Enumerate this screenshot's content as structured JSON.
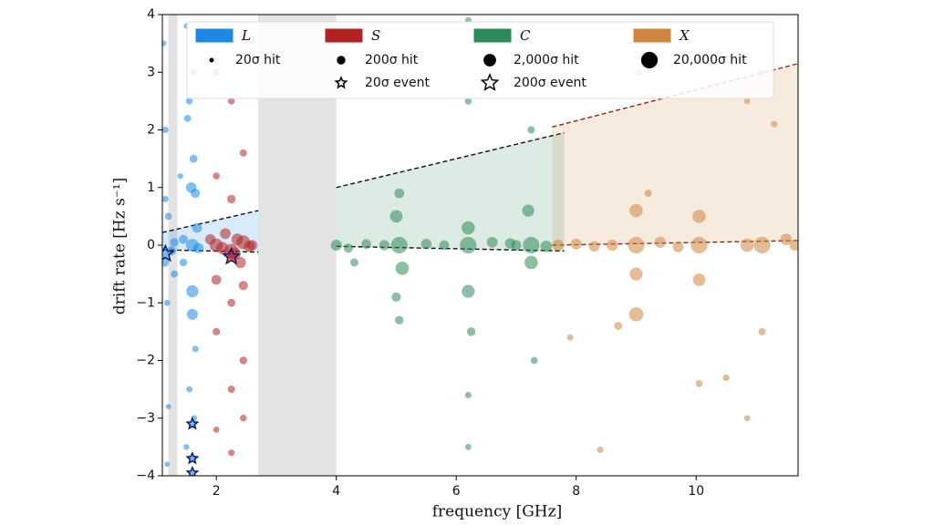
{
  "chart_data": {
    "type": "scatter",
    "x_label": "frequency [GHz]",
    "y_label": "drift rate [Hz s⁻¹]",
    "xlim": [
      1.1,
      11.7
    ],
    "ylim": [
      -4,
      4
    ],
    "xticks": [
      2,
      4,
      6,
      8,
      10
    ],
    "yticks": [
      {
        "value": -4,
        "label": "−4"
      },
      {
        "value": -3,
        "label": "−3"
      },
      {
        "value": -2,
        "label": "−2"
      },
      {
        "value": -1,
        "label": "−1"
      },
      0,
      1,
      2,
      3,
      4
    ],
    "masked_bands": [
      [
        1.2,
        1.35
      ],
      [
        2.7,
        4.0
      ]
    ],
    "envelopes": [
      {
        "color": "#1e88e5",
        "line_color": "#111111",
        "x": [
          1.1,
          2.7
        ],
        "upper": [
          0.22,
          0.6
        ],
        "lower": [
          -0.08,
          -0.12
        ]
      },
      {
        "color": "#2e8b57",
        "line_color": "#111111",
        "x": [
          4.0,
          7.8
        ],
        "upper": [
          1.0,
          1.95
        ],
        "lower": [
          -0.02,
          -0.1
        ]
      },
      {
        "color": "#d2884a",
        "line_color": "#8b2a10",
        "x": [
          7.6,
          11.7
        ],
        "upper": [
          2.05,
          3.15
        ],
        "lower": [
          0.0,
          0.08
        ]
      }
    ],
    "series": [
      {
        "name": "L",
        "color": "#1e88e5",
        "x": [
          1.12,
          1.15,
          1.18,
          1.2,
          1.25,
          1.3,
          1.4,
          1.45,
          1.5,
          1.55,
          1.6,
          1.62,
          1.65,
          1.68,
          1.7,
          1.55,
          1.5,
          1.2,
          1.15,
          1.6,
          1.62,
          1.45,
          1.3,
          1.18,
          1.65,
          1.58,
          1.6,
          1.52,
          1.63,
          1.14
        ],
        "y": [
          3.5,
          2.0,
          -1.0,
          0.5,
          -0.1,
          0.05,
          1.2,
          -0.3,
          3.8,
          -2.5,
          0.0,
          1.5,
          -1.8,
          0.3,
          -0.05,
          2.5,
          -3.5,
          -2.8,
          0.8,
          -1.2,
          3.0,
          0.1,
          -0.5,
          -3.8,
          0.9,
          1.0,
          -0.8,
          2.2,
          -3.0,
          -0.3
        ],
        "size": [
          40,
          60,
          50,
          80,
          300,
          200,
          40,
          120,
          30,
          50,
          2000,
          150,
          60,
          400,
          500,
          70,
          40,
          30,
          60,
          800,
          40,
          250,
          90,
          30,
          300,
          600,
          1500,
          80,
          50,
          200
        ],
        "events": {
          "x": [
            1.15,
            1.6,
            1.6,
            1.6
          ],
          "y": [
            -0.15,
            -3.1,
            -3.7,
            -3.95
          ],
          "size": [
            200,
            20,
            20,
            20
          ]
        }
      },
      {
        "name": "S",
        "color": "#b22222",
        "x": [
          2.0,
          2.0,
          2.0,
          2.0,
          2.0,
          2.25,
          2.25,
          2.25,
          2.25,
          2.25,
          2.45,
          2.45,
          2.45,
          2.45,
          2.45,
          2.1,
          2.35,
          2.55,
          1.9,
          2.3,
          2.0,
          2.45,
          2.25,
          2.6,
          2.15,
          2.4
        ],
        "y": [
          3.0,
          1.2,
          0.0,
          -1.5,
          -3.2,
          2.5,
          0.8,
          -0.1,
          -1.0,
          -3.6,
          3.6,
          1.6,
          0.05,
          -2.0,
          -3.0,
          -0.05,
          0.1,
          -0.02,
          0.1,
          -0.15,
          -0.6,
          -0.7,
          -2.5,
          0.0,
          0.2,
          -0.3
        ],
        "size": [
          60,
          80,
          3000,
          100,
          50,
          70,
          200,
          5000,
          150,
          60,
          50,
          90,
          4000,
          120,
          70,
          1500,
          1200,
          800,
          600,
          2000,
          400,
          300,
          100,
          500,
          700,
          900
        ],
        "events": {
          "x": [
            2.25
          ],
          "y": [
            -0.2
          ],
          "size": [
            200
          ]
        }
      },
      {
        "name": "C",
        "color": "#2e8b57",
        "x": [
          4.0,
          4.2,
          4.5,
          4.8,
          5.0,
          5.05,
          5.1,
          5.05,
          5.0,
          5.5,
          5.8,
          6.2,
          6.2,
          6.2,
          6.2,
          6.2,
          6.2,
          6.25,
          6.6,
          7.0,
          7.2,
          7.25,
          7.25,
          7.3,
          7.25,
          7.5,
          6.2,
          5.05,
          4.3,
          6.9
        ],
        "y": [
          0.0,
          -0.05,
          0.02,
          0.0,
          0.5,
          0.0,
          -0.4,
          0.9,
          -0.9,
          0.02,
          0.0,
          3.9,
          2.5,
          0.3,
          0.0,
          -0.8,
          -3.5,
          -1.5,
          0.05,
          0.0,
          0.6,
          0.0,
          -0.3,
          -2.0,
          2.0,
          -0.02,
          -2.6,
          -1.3,
          -0.3,
          0.03
        ],
        "size": [
          800,
          300,
          400,
          500,
          2000,
          20000,
          3000,
          400,
          300,
          600,
          400,
          60,
          80,
          3000,
          20000,
          2500,
          50,
          200,
          700,
          500,
          1500,
          20000,
          3000,
          80,
          100,
          1000,
          60,
          200,
          150,
          600
        ],
        "events": {
          "x": [],
          "y": [],
          "size": []
        }
      },
      {
        "name": "X",
        "color": "#cd853f",
        "x": [
          7.7,
          8.0,
          8.3,
          8.6,
          9.0,
          9.0,
          9.0,
          9.0,
          9.05,
          9.4,
          9.7,
          10.05,
          10.05,
          10.05,
          10.05,
          10.05,
          10.85,
          10.85,
          10.85,
          11.1,
          11.1,
          11.1,
          11.5,
          11.65,
          8.4,
          8.7,
          10.5,
          11.3,
          9.2,
          7.9
        ],
        "y": [
          0.0,
          0.02,
          -0.02,
          0.0,
          0.0,
          0.6,
          -0.5,
          -1.2,
          3.0,
          0.05,
          -0.03,
          0.0,
          0.5,
          -0.6,
          -2.4,
          3.2,
          0.0,
          -3.0,
          2.5,
          0.0,
          -1.5,
          3.0,
          0.1,
          0.0,
          -3.55,
          -1.4,
          -2.3,
          2.1,
          0.9,
          -1.6
        ],
        "size": [
          1000,
          800,
          600,
          900,
          20000,
          3000,
          2500,
          5000,
          60,
          900,
          700,
          20000,
          3000,
          2000,
          80,
          60,
          3000,
          50,
          50,
          20000,
          100,
          60,
          1200,
          800,
          60,
          150,
          70,
          60,
          100,
          60
        ],
        "events": {
          "x": [],
          "y": [],
          "size": []
        }
      }
    ],
    "size_legend": [
      {
        "value": 20,
        "label": "20σ hit"
      },
      {
        "value": 200,
        "label": "200σ hit"
      },
      {
        "value": 2000,
        "label": "2,000σ hit"
      },
      {
        "value": 20000,
        "label": "20,000σ hit"
      }
    ],
    "event_legend": [
      {
        "value": 20,
        "label": "20σ event"
      },
      {
        "value": 200,
        "label": "200σ event"
      }
    ]
  }
}
